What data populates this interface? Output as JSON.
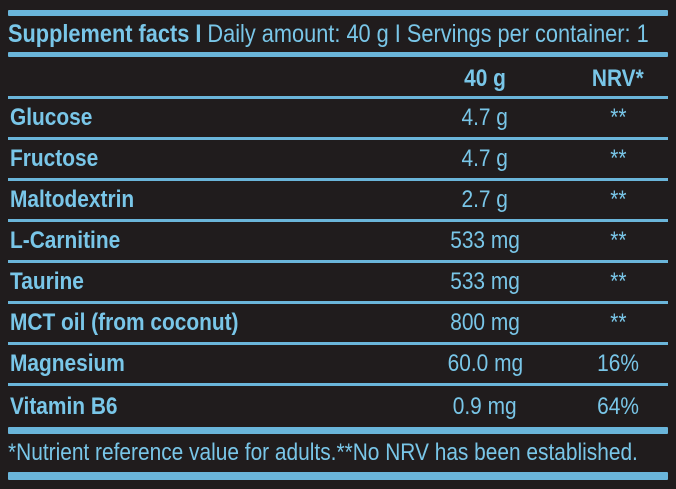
{
  "label": {
    "colors": {
      "background": "#201c1d",
      "text_blue": "#79c6e8",
      "rule_blue": "#6ab5da"
    },
    "header": {
      "title": "Supplement facts I",
      "info": "Daily amount: 40 g I Servings per container: 1"
    },
    "columns": {
      "amount": "40 g",
      "nrv": "NRV*"
    },
    "rows": [
      {
        "name": "Glucose",
        "amount": "4.7 g",
        "nrv": "**"
      },
      {
        "name": "Fructose",
        "amount": "4.7 g",
        "nrv": "**"
      },
      {
        "name": "Maltodextrin",
        "amount": "2.7 g",
        "nrv": "**"
      },
      {
        "name": "L-Carnitine",
        "amount": "533 mg",
        "nrv": "**"
      },
      {
        "name": "Taurine",
        "amount": "533 mg",
        "nrv": "**"
      },
      {
        "name": "MCT oil (from coconut)",
        "amount": "800 mg",
        "nrv": "**"
      },
      {
        "name": "Magnesium",
        "amount": "60.0 mg",
        "nrv": "16%"
      },
      {
        "name": "Vitamin B6",
        "amount": "0.9 mg",
        "nrv": "64%"
      }
    ],
    "footnote": "*Nutrient reference value for adults.**No NRV has been established."
  }
}
